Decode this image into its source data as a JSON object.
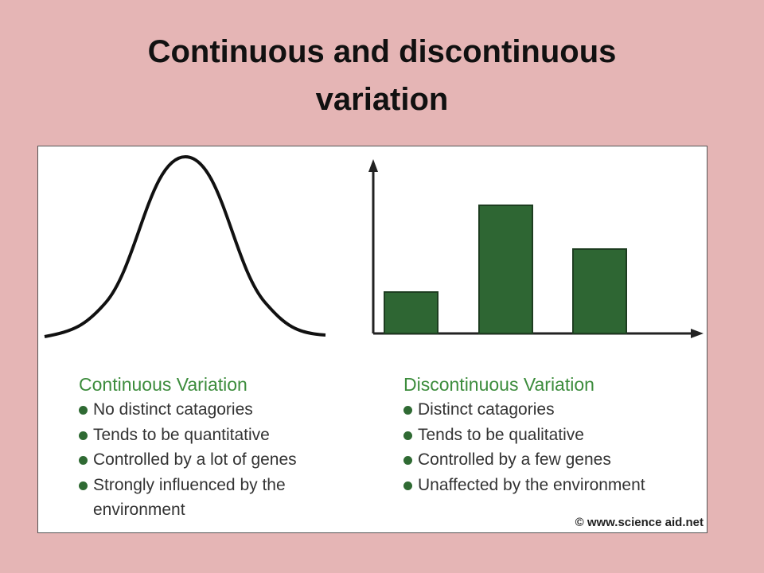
{
  "header": {
    "title_line1": "Continuous and discontinuous",
    "title_line2": "variation"
  },
  "left": {
    "heading": "Continuous Variation",
    "items": [
      "No distinct catagories",
      "Tends to be quantitative",
      "Controlled by a lot of genes",
      "Strongly influenced by the environment"
    ]
  },
  "right": {
    "heading": "Discontinuous Variation",
    "items": [
      "Distinct catagories",
      "Tends to be qualitative",
      "Controlled by a few genes",
      "Unaffected by the environment"
    ]
  },
  "credit": "© www.science aid.net"
}
